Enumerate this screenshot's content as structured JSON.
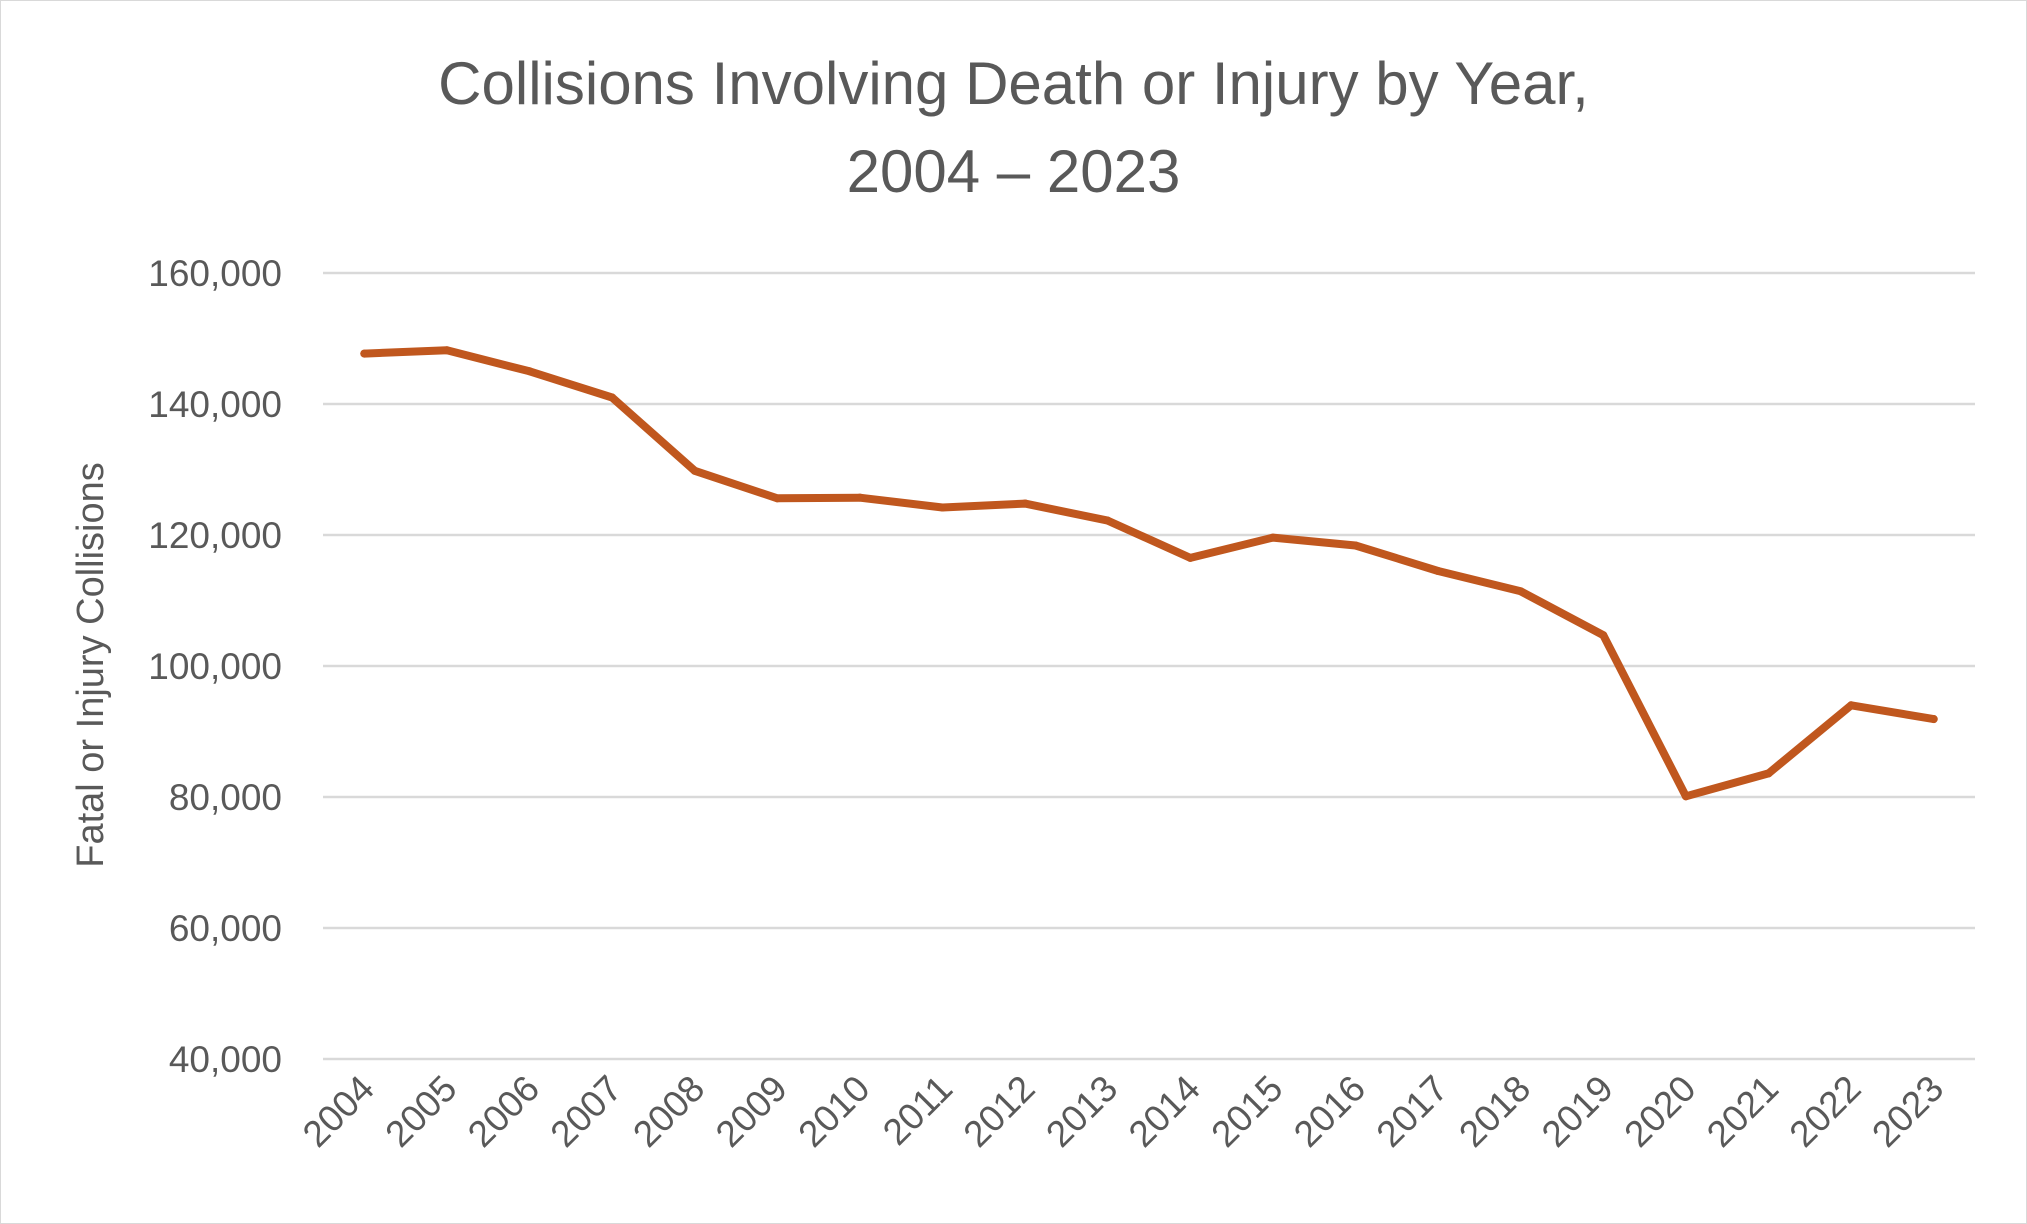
{
  "chart_data": {
    "type": "line",
    "title": [
      "Collisions Involving Death or Injury by Year,",
      "2004 – 2023"
    ],
    "xlabel": "",
    "ylabel": "Fatal or Injury Collisions",
    "categories": [
      "2004",
      "2005",
      "2006",
      "2007",
      "2008",
      "2009",
      "2010",
      "2011",
      "2012",
      "2013",
      "2014",
      "2015",
      "2016",
      "2017",
      "2018",
      "2019",
      "2020",
      "2021",
      "2022",
      "2023"
    ],
    "series": [
      {
        "values": [
          147700,
          148200,
          145000,
          141000,
          129800,
          125600,
          125700,
          124200,
          124800,
          122200,
          116500,
          119600,
          118400,
          114500,
          111400,
          104700,
          80100,
          83600,
          94000,
          91900
        ],
        "color": "#C0571E"
      }
    ],
    "ylim": [
      40000,
      160000
    ],
    "yticks": [
      40000,
      60000,
      80000,
      100000,
      120000,
      140000,
      160000
    ],
    "ytick_labels": [
      "40,000",
      "60,000",
      "80,000",
      "100,000",
      "120,000",
      "140,000",
      "160,000"
    ],
    "grid": true,
    "grid_color": "#d9d9d9",
    "legend": "none"
  }
}
